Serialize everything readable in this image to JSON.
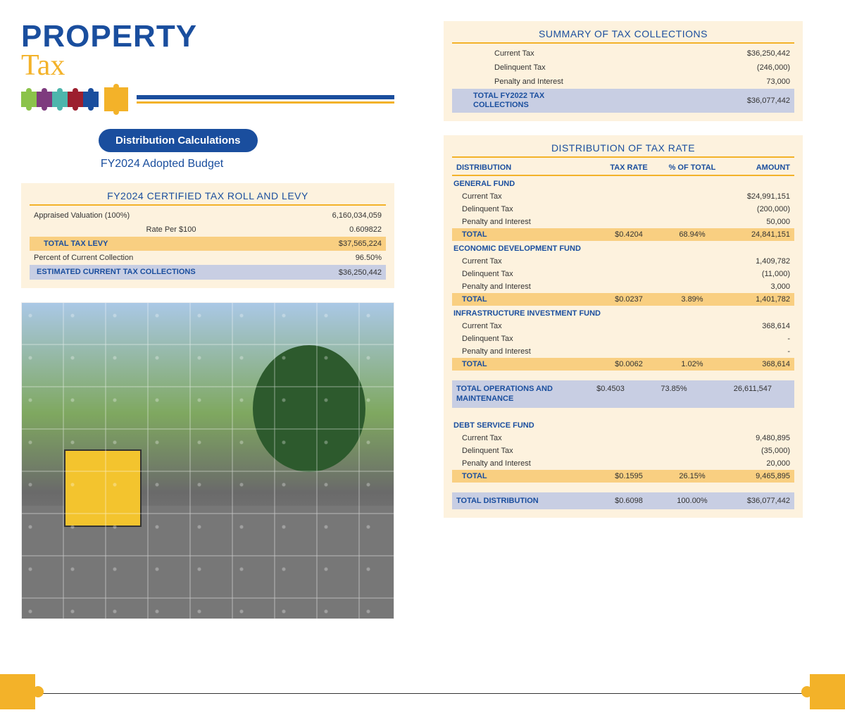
{
  "colors": {
    "brand_blue": "#1a4e9e",
    "accent_gold": "#f3b229",
    "card_bg": "#fdf2de",
    "hl_orange": "#f9cf81",
    "hl_blue": "#c8cee3"
  },
  "header": {
    "title_top": "PROPERTY",
    "title_bottom": "Tax",
    "puzzle_colors": [
      "#8bc34a",
      "#7e3b7e",
      "#4db6ac",
      "#9c1f2e",
      "#1a4e9e",
      "#f3b229"
    ],
    "badge": "Distribution Calculations",
    "subtitle": "FY2024 Adopted Budget"
  },
  "levy": {
    "title": "FY2024 CERTIFIED TAX ROLL AND LEVY",
    "rows": [
      {
        "label": "Appraised Valuation (100%)",
        "value": "6,160,034,059"
      },
      {
        "label": "Rate Per $100",
        "value": "0.609822",
        "center": true
      }
    ],
    "total_label": "TOTAL TAX LEVY",
    "total_value": "$37,565,224",
    "percent_row": {
      "label": "Percent of Current Collection",
      "value": "96.50%"
    },
    "est_label": "ESTIMATED CURRENT TAX COLLECTIONS",
    "est_value": "$36,250,442"
  },
  "summary": {
    "title": "SUMMARY OF TAX COLLECTIONS",
    "rows": [
      {
        "label": "Current Tax",
        "value": "$36,250,442"
      },
      {
        "label": "Delinquent Tax",
        "value": "(246,000)"
      },
      {
        "label": "Penalty and Interest",
        "value": "73,000"
      }
    ],
    "total_label": "TOTAL FY2022 TAX COLLECTIONS",
    "total_value": "$36,077,442"
  },
  "distribution": {
    "title": "DISTRIBUTION OF TAX RATE",
    "columns": [
      "DISTRIBUTION",
      "TAX RATE",
      "% OF TOTAL",
      "AMOUNT"
    ],
    "sections": [
      {
        "name": "GENERAL FUND",
        "rows": [
          {
            "label": "Current Tax",
            "rate": "",
            "pct": "",
            "amount": "$24,991,151"
          },
          {
            "label": "Delinquent Tax",
            "rate": "",
            "pct": "",
            "amount": "(200,000)"
          },
          {
            "label": "Penalty and Interest",
            "rate": "",
            "pct": "",
            "amount": "50,000"
          }
        ],
        "total": {
          "label": "TOTAL",
          "rate": "$0.4204",
          "pct": "68.94%",
          "amount": "24,841,151"
        }
      },
      {
        "name": "ECONOMIC DEVELOPMENT FUND",
        "rows": [
          {
            "label": "Current Tax",
            "rate": "",
            "pct": "",
            "amount": "1,409,782"
          },
          {
            "label": "Delinquent Tax",
            "rate": "",
            "pct": "",
            "amount": "(11,000)"
          },
          {
            "label": "Penalty and Interest",
            "rate": "",
            "pct": "",
            "amount": "3,000"
          }
        ],
        "total": {
          "label": "TOTAL",
          "rate": "$0.0237",
          "pct": "3.89%",
          "amount": "1,401,782"
        }
      },
      {
        "name": "INFRASTRUCTURE INVESTMENT FUND",
        "rows": [
          {
            "label": "Current Tax",
            "rate": "",
            "pct": "",
            "amount": "368,614"
          },
          {
            "label": "Delinquent Tax",
            "rate": "",
            "pct": "",
            "amount": "-"
          },
          {
            "label": "Penalty and Interest",
            "rate": "",
            "pct": "",
            "amount": "-"
          }
        ],
        "total": {
          "label": "TOTAL",
          "rate": "$0.0062",
          "pct": "1.02%",
          "amount": "368,614"
        }
      }
    ],
    "ops_total": {
      "label": "TOTAL OPERATIONS AND MAINTENANCE",
      "rate": "$0.4503",
      "pct": "73.85%",
      "amount": "26,611,547"
    },
    "debt": {
      "name": "DEBT SERVICE FUND",
      "rows": [
        {
          "label": "Current Tax",
          "rate": "",
          "pct": "",
          "amount": "9,480,895"
        },
        {
          "label": "Delinquent Tax",
          "rate": "",
          "pct": "",
          "amount": "(35,000)"
        },
        {
          "label": "Penalty and Interest",
          "rate": "",
          "pct": "",
          "amount": "20,000"
        }
      ],
      "total": {
        "label": "TOTAL",
        "rate": "$0.1595",
        "pct": "26.15%",
        "amount": "9,465,895"
      }
    },
    "grand_total": {
      "label": "TOTAL DISTRIBUTION",
      "rate": "$0.6098",
      "pct": "100.00%",
      "amount": "$36,077,442"
    }
  }
}
